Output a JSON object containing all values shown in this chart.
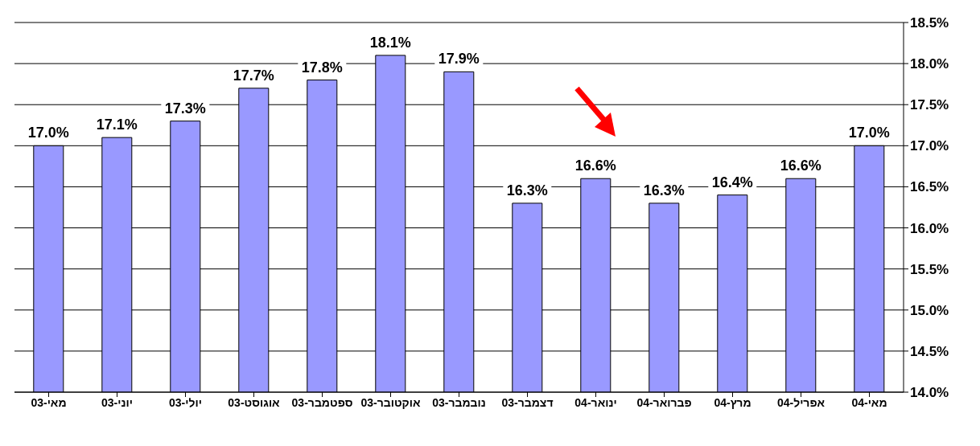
{
  "chart_data": {
    "type": "bar",
    "categories": [
      "מאי-03",
      "יוני-03",
      "יולי-03",
      "אוגוסט-03",
      "ספטמבר-03",
      "אוקטובר-03",
      "נובמבר-03",
      "דצמבר-03",
      "ינואר-04",
      "פברואר-04",
      "מרץ-04",
      "אפריל-04",
      "מאי-04"
    ],
    "values": [
      17.0,
      17.1,
      17.3,
      17.7,
      17.8,
      18.1,
      17.9,
      16.3,
      16.6,
      16.3,
      16.4,
      16.6,
      17.0
    ],
    "value_labels": [
      "17.0%",
      "17.1%",
      "17.3%",
      "17.7%",
      "17.8%",
      "18.1%",
      "17.9%",
      "16.3%",
      "16.6%",
      "16.3%",
      "16.4%",
      "16.6%",
      "17.0%"
    ],
    "color": "#9999ff",
    "ylim": [
      14.0,
      18.5
    ],
    "yticks": [
      {
        "value": 14.0,
        "label": "14.0%"
      },
      {
        "value": 14.5,
        "label": "14.5%"
      },
      {
        "value": 15.0,
        "label": "15.0%"
      },
      {
        "value": 15.5,
        "label": "15.5%"
      },
      {
        "value": 16.0,
        "label": "16.0%"
      },
      {
        "value": 16.5,
        "label": "16.5%"
      },
      {
        "value": 17.0,
        "label": "17.0%"
      },
      {
        "value": 17.5,
        "label": "17.5%"
      },
      {
        "value": 18.0,
        "label": "18.0%"
      },
      {
        "value": 18.5,
        "label": "18.5%"
      }
    ],
    "grid": "y",
    "legend": false
  }
}
